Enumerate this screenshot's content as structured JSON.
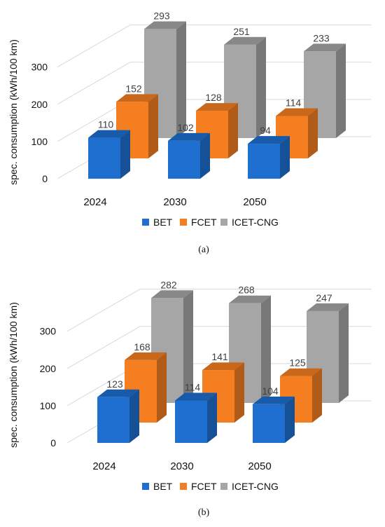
{
  "chart_data": [
    {
      "type": "bar",
      "caption": "(a)",
      "ylabel": "spec. consumption (kWh/100 km)",
      "yticks": [
        "0",
        "100",
        "200",
        "300"
      ],
      "ylim": [
        0,
        300
      ],
      "grid": true,
      "legend_position": "bottom",
      "categories": [
        "2024",
        "2030",
        "2050"
      ],
      "series": [
        {
          "name": "BET",
          "values": [
            110,
            102,
            94
          ],
          "labels": [
            "110",
            "102",
            "94"
          ],
          "color": "#1f6fd1"
        },
        {
          "name": "FCET",
          "values": [
            152,
            128,
            114
          ],
          "labels": [
            "152",
            "128",
            "114"
          ],
          "color": "#f57f20"
        },
        {
          "name": "ICET-CNG",
          "values": [
            293,
            251,
            233
          ],
          "labels": [
            "293",
            "251",
            "233"
          ],
          "color": "#a6a6a6"
        }
      ]
    },
    {
      "type": "bar",
      "caption": "(b)",
      "ylabel": "spec. consumption (kWh/100 km)",
      "yticks": [
        "0",
        "100",
        "200",
        "300"
      ],
      "ylim": [
        0,
        300
      ],
      "grid": true,
      "legend_position": "bottom",
      "categories": [
        "2024",
        "2030",
        "2050"
      ],
      "series": [
        {
          "name": "BET",
          "values": [
            123,
            114,
            104
          ],
          "labels": [
            "123",
            "114",
            "104"
          ],
          "color": "#1f6fd1"
        },
        {
          "name": "FCET",
          "values": [
            168,
            141,
            125
          ],
          "labels": [
            "168",
            "141",
            "125"
          ],
          "color": "#f57f20"
        },
        {
          "name": "ICET-CNG",
          "values": [
            282,
            268,
            247
          ],
          "labels": [
            "282",
            "268",
            "247"
          ],
          "color": "#a6a6a6"
        }
      ]
    }
  ]
}
